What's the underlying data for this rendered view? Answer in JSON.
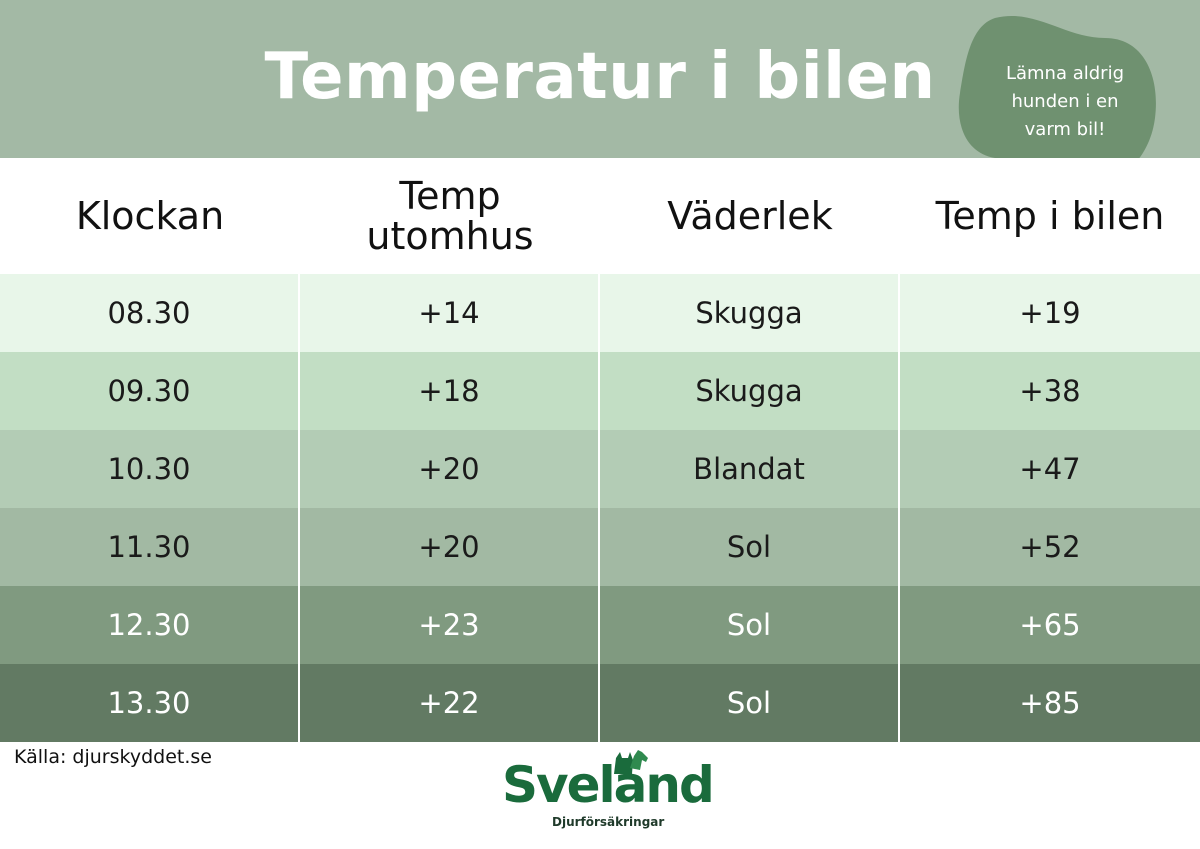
{
  "header": {
    "title": "Temperatur i bilen",
    "bubble": [
      "Lämna aldrig",
      "hunden i en",
      "varm bil!"
    ],
    "bg_color": "#a3b9a5",
    "bubble_color": "#6f9170"
  },
  "table": {
    "columns": [
      "Klockan",
      [
        "Temp",
        "utomhus"
      ],
      "Väderlek",
      "Temp i bilen"
    ],
    "rows": [
      {
        "time": "08.30",
        "outside": "+14",
        "weather": "Skugga",
        "car": "+19",
        "bg": "#e8f6e9",
        "fg": "#1a1a1a"
      },
      {
        "time": "09.30",
        "outside": "+18",
        "weather": "Skugga",
        "car": "+38",
        "bg": "#c2dec4",
        "fg": "#1a1a1a"
      },
      {
        "time": "10.30",
        "outside": "+20",
        "weather": "Blandat",
        "car": "+47",
        "bg": "#b3ccb5",
        "fg": "#1a1a1a"
      },
      {
        "time": "11.30",
        "outside": "+20",
        "weather": "Sol",
        "car": "+52",
        "bg": "#a2b9a3",
        "fg": "#1a1a1a"
      },
      {
        "time": "12.30",
        "outside": "+23",
        "weather": "Sol",
        "car": "+65",
        "bg": "#809a80",
        "fg": "#ffffff"
      },
      {
        "time": "13.30",
        "outside": "+22",
        "weather": "Sol",
        "car": "+85",
        "bg": "#627a63",
        "fg": "#ffffff"
      }
    ]
  },
  "footer": {
    "source": "Källa: djurskyddet.se",
    "logo_name": "Sveland",
    "logo_sub": "Djurförsäkringar",
    "logo_color": "#1a6b3c"
  }
}
